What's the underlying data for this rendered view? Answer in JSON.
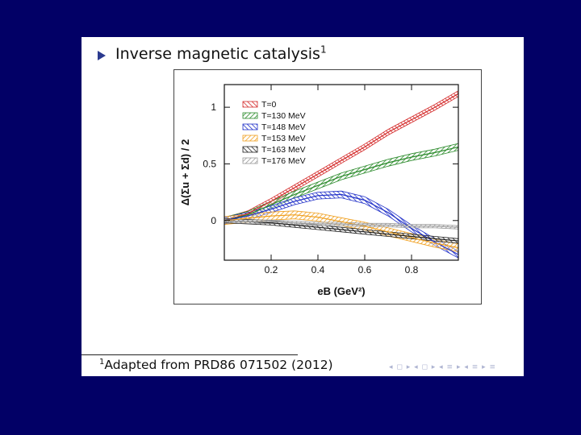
{
  "slide": {
    "title": "Inverse magnetic catalysis",
    "title_footnote_mark": "1",
    "footnote_mark": "1",
    "footnote_text": "Adapted from PRD86 071502 (2012)",
    "nav_symbols": "◂ ◻ ▸ ◂ ◻ ▸ ◂ ≡ ▸ ◂ ≡ ▸ ≡"
  },
  "colors": {
    "background": "#020066",
    "slide": "#ffffff",
    "bullet": "#2b3a8f"
  },
  "chart_data": {
    "type": "line",
    "title": "",
    "xlabel": "eB (GeV²)",
    "ylabel": "Δ(Σu + Σd) / 2",
    "xlim": [
      0,
      1.0
    ],
    "ylim": [
      -0.35,
      1.2
    ],
    "xticks": [
      0.2,
      0.4,
      0.6,
      0.8
    ],
    "xtick_labels": [
      "0.2",
      "0.4",
      "0.6",
      "0.8"
    ],
    "yticks": [
      0,
      0.5,
      1
    ],
    "ytick_labels": [
      "0",
      "0.5",
      "1"
    ],
    "grid": false,
    "legend_position": "top-left",
    "x": [
      0.0,
      0.1,
      0.2,
      0.3,
      0.4,
      0.5,
      0.6,
      0.7,
      0.8,
      0.9,
      1.0
    ],
    "series": [
      {
        "name": "T=0",
        "color": "#d42a2a",
        "values": [
          0.0,
          0.06,
          0.17,
          0.29,
          0.41,
          0.53,
          0.65,
          0.78,
          0.89,
          1.0,
          1.12
        ],
        "band": 0.025
      },
      {
        "name": "T=130 MeV",
        "color": "#2a8a2a",
        "values": [
          0.0,
          0.05,
          0.14,
          0.23,
          0.31,
          0.39,
          0.45,
          0.51,
          0.56,
          0.6,
          0.65
        ],
        "band": 0.03
      },
      {
        "name": "T=148 MeV",
        "color": "#2030c8",
        "values": [
          0.0,
          0.04,
          0.1,
          0.17,
          0.22,
          0.23,
          0.18,
          0.07,
          -0.07,
          -0.19,
          -0.3
        ],
        "band": 0.03
      },
      {
        "name": "T=153 MeV",
        "color": "#f0a020",
        "values": [
          0.0,
          0.02,
          0.04,
          0.05,
          0.03,
          -0.01,
          -0.05,
          -0.1,
          -0.15,
          -0.2,
          -0.24
        ],
        "band": 0.035
      },
      {
        "name": "T=163 MeV",
        "color": "#222222",
        "values": [
          0.0,
          -0.01,
          -0.02,
          -0.04,
          -0.06,
          -0.08,
          -0.1,
          -0.12,
          -0.14,
          -0.16,
          -0.18
        ],
        "band": 0.02
      },
      {
        "name": "T=176 MeV",
        "color": "#9a9a9a",
        "values": [
          0.0,
          -0.01,
          -0.01,
          -0.02,
          -0.03,
          -0.03,
          -0.04,
          -0.04,
          -0.05,
          -0.05,
          -0.06
        ],
        "band": 0.015
      }
    ]
  }
}
